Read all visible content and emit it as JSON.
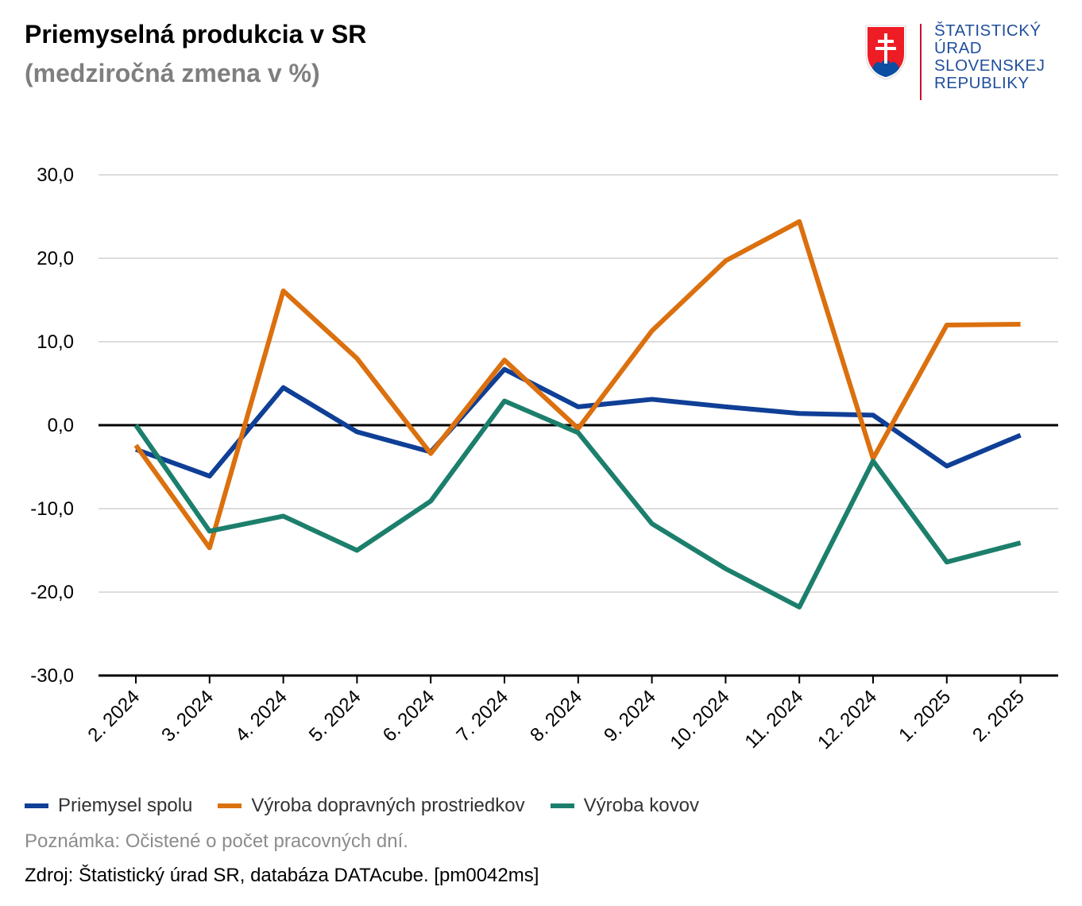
{
  "header": {
    "title": "Priemyselná produkcia v SR",
    "subtitle": "(medziročná zmena v %)"
  },
  "logo": {
    "lines": [
      "ŠTATISTICKÝ",
      "ÚRAD",
      "SLOVENSKEJ",
      "REPUBLIKY"
    ],
    "icon": "slovak-coat-of-arms"
  },
  "colors": {
    "series": [
      "#0f3f96",
      "#db700f",
      "#1c7f6c"
    ],
    "grid": "#dcdcdc",
    "axis": "#000000",
    "logo_text": "#1f4e9c",
    "logo_accent": "#c8102e"
  },
  "chart_data": {
    "type": "line",
    "categories": [
      "2. 2024",
      "3. 2024",
      "4. 2024",
      "5. 2024",
      "6. 2024",
      "7. 2024",
      "8. 2024",
      "9. 2024",
      "10. 2024",
      "11. 2024",
      "12. 2024",
      "1. 2025",
      "2. 2025"
    ],
    "series": [
      {
        "name": "Priemysel spolu",
        "values": [
          -2.9,
          -6.1,
          4.5,
          -0.8,
          -3.2,
          6.7,
          2.2,
          3.1,
          2.2,
          1.4,
          1.2,
          -4.9,
          -1.2
        ]
      },
      {
        "name": "Výroba dopravných prostriedkov",
        "values": [
          -2.4,
          -14.7,
          16.1,
          8.0,
          -3.4,
          7.8,
          -0.4,
          11.3,
          19.7,
          24.4,
          -4.0,
          12.0,
          12.1
        ]
      },
      {
        "name": "Výroba kovov",
        "values": [
          0.0,
          -12.7,
          -10.9,
          -15.0,
          -9.1,
          2.9,
          -0.9,
          -11.8,
          -17.2,
          -21.8,
          -4.3,
          -16.4,
          -14.1
        ]
      }
    ],
    "y_ticks": [
      "30,0",
      "20,0",
      "10,0",
      "0,0",
      "-10,0",
      "-20,0",
      "-30,0"
    ],
    "y_tick_values": [
      30,
      20,
      10,
      0,
      -10,
      -20,
      -30
    ],
    "ylim": [
      -30,
      30
    ],
    "grid": true,
    "legend_position": "bottom-left"
  },
  "footer": {
    "note": "Poznámka: Očistené o počet pracovných dní.",
    "source": "Zdroj: Štatistický úrad SR, databáza DATAcube. [pm0042ms]"
  }
}
